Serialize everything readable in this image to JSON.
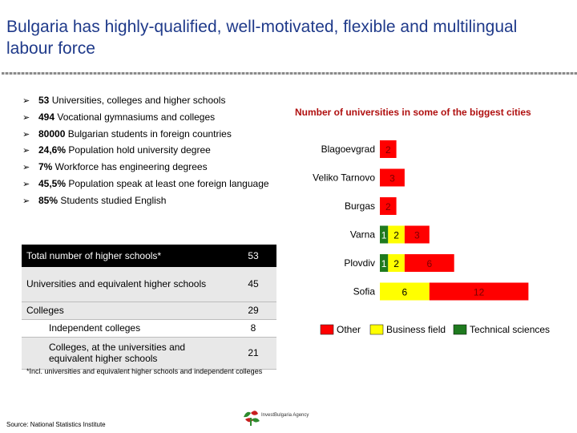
{
  "title": "Bulgaria has highly-qualified, well-motivated, flexible and multilingual labour force",
  "bullets": [
    {
      "num": "53",
      "text": " Universities, colleges and higher schools"
    },
    {
      "num": "494",
      "text": " Vocational gymnasiums and colleges"
    },
    {
      "num": "80000",
      "text": " Bulgarian students in foreign countries"
    },
    {
      "num": "24,6%",
      "text": " Population hold university degree"
    },
    {
      "num": "7%",
      "text": " Workforce has engineering degrees"
    },
    {
      "num": "45,5%",
      "text": " Population speak at least one foreign language"
    },
    {
      "num": "85%",
      "text": " Students studied English"
    }
  ],
  "table": {
    "header": {
      "label": "Total number of higher schools*",
      "value": "53"
    },
    "rows": [
      {
        "label": "Universities and equivalent higher schools",
        "value": "45"
      },
      {
        "label": "Colleges",
        "value": "29"
      },
      {
        "label": "Independent colleges",
        "value": "8"
      },
      {
        "label": "Colleges, at the universities and equivalent higher schools",
        "value": "21"
      }
    ]
  },
  "footnote": "*Incl. universities and equivalent higher schools and independent colleges",
  "source": "Source: National Statistics Institute",
  "logo_text": "InvestBulgaria Agency",
  "chart_data": {
    "type": "bar",
    "orientation": "horizontal",
    "stacked": true,
    "title": "Number of universities in some of the biggest cities",
    "categories": [
      "Blagoevgrad",
      "Veliko Tarnovo",
      "Burgas",
      "Varna",
      "Plovdiv",
      "Sofia"
    ],
    "series": [
      {
        "name": "Technical sciences",
        "color": "#1f7a1f",
        "values": [
          0,
          0,
          0,
          1,
          1,
          0
        ]
      },
      {
        "name": "Business field",
        "color": "#ffff00",
        "values": [
          0,
          0,
          0,
          2,
          2,
          6
        ]
      },
      {
        "name": "Other",
        "color": "#ff0000",
        "values": [
          2,
          3,
          2,
          3,
          6,
          12
        ]
      }
    ],
    "segment_order": [
      "Technical sciences",
      "Business field",
      "Other"
    ],
    "legend": [
      "Other",
      "Business field",
      "Technical sciences"
    ],
    "legend_position": "bottom",
    "grid": false
  }
}
